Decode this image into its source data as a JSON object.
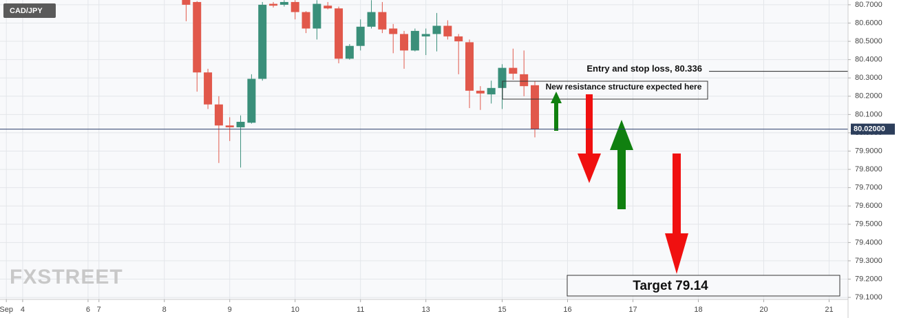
{
  "chart_data": {
    "type": "candlestick",
    "title": "CAD/JPY",
    "watermark": "FXSTREET",
    "up_color": "#3a8f7a",
    "down_color": "#e1584b",
    "grid": true,
    "x": [
      15,
      16,
      17,
      18,
      19,
      20,
      21,
      22,
      23,
      24,
      25,
      26,
      27,
      28,
      29,
      30,
      31,
      32,
      33,
      34,
      35,
      36,
      37,
      38,
      39,
      40,
      41,
      42,
      43,
      44,
      45,
      46,
      47
    ],
    "open": [
      80.74,
      80.715,
      80.33,
      80.155,
      80.04,
      80.03,
      80.055,
      80.295,
      80.705,
      80.7,
      80.715,
      80.66,
      80.57,
      80.695,
      80.68,
      80.405,
      80.475,
      80.58,
      80.66,
      80.57,
      80.54,
      80.45,
      80.527,
      80.54,
      80.585,
      80.527,
      80.495,
      80.23,
      80.21,
      80.245,
      80.355,
      80.32,
      80.26
    ],
    "high": [
      80.76,
      80.72,
      80.35,
      80.2,
      80.085,
      80.095,
      80.32,
      80.715,
      80.715,
      80.725,
      80.725,
      80.665,
      80.725,
      80.715,
      80.69,
      80.485,
      80.62,
      80.725,
      80.715,
      80.595,
      80.557,
      80.57,
      80.57,
      80.655,
      80.615,
      80.54,
      80.51,
      80.255,
      80.285,
      80.375,
      80.46,
      80.45,
      80.28
    ],
    "low": [
      80.61,
      80.225,
      80.13,
      79.835,
      79.955,
      79.81,
      80.05,
      80.285,
      80.685,
      80.69,
      80.62,
      80.545,
      80.51,
      80.675,
      80.38,
      80.4,
      80.45,
      80.57,
      80.545,
      80.435,
      80.35,
      80.445,
      80.425,
      80.445,
      80.51,
      80.32,
      80.135,
      80.125,
      80.16,
      80.13,
      80.29,
      80.2,
      79.975
    ],
    "close": [
      80.7,
      80.33,
      80.155,
      80.04,
      80.03,
      80.06,
      80.295,
      80.7,
      80.695,
      80.715,
      80.66,
      80.57,
      80.705,
      80.68,
      80.405,
      80.475,
      80.58,
      80.66,
      80.565,
      80.54,
      80.45,
      80.557,
      80.54,
      80.585,
      80.527,
      80.5,
      80.23,
      80.215,
      80.245,
      80.355,
      80.323,
      80.255,
      80.02
    ],
    "xlim": [
      -2.08,
      75.74
    ],
    "ylim": [
      79.089,
      80.726
    ],
    "xticks": [
      {
        "value": -1.5,
        "label": "Sep"
      },
      {
        "value": 0,
        "label": "4"
      },
      {
        "value": 6,
        "label": "6"
      },
      {
        "value": 7,
        "label": "7"
      },
      {
        "value": 13,
        "label": "8"
      },
      {
        "value": 19,
        "label": "9"
      },
      {
        "value": 25,
        "label": "10"
      },
      {
        "value": 31,
        "label": "11"
      },
      {
        "value": 37,
        "label": "13"
      },
      {
        "value": 44,
        "label": "15"
      },
      {
        "value": 50,
        "label": "16"
      },
      {
        "value": 56,
        "label": "17"
      },
      {
        "value": 62,
        "label": "18"
      },
      {
        "value": 68,
        "label": "20"
      },
      {
        "value": 74,
        "label": "21"
      }
    ],
    "yticks": [
      {
        "value": 80.7,
        "label": "80.7000"
      },
      {
        "value": 80.6,
        "label": "80.6000"
      },
      {
        "value": 80.5,
        "label": "80.5000"
      },
      {
        "value": 80.4,
        "label": "80.4000"
      },
      {
        "value": 80.3,
        "label": "80.3000"
      },
      {
        "value": 80.2,
        "label": "80.2000"
      },
      {
        "value": 80.1,
        "label": "80.1000"
      },
      {
        "value": 80.0,
        "label": "80.0000"
      },
      {
        "value": 79.9,
        "label": "79.9000"
      },
      {
        "value": 79.8,
        "label": "79.8000"
      },
      {
        "value": 79.7,
        "label": "79.7000"
      },
      {
        "value": 79.6,
        "label": "79.6000"
      },
      {
        "value": 79.5,
        "label": "79.5000"
      },
      {
        "value": 79.4,
        "label": "79.4000"
      },
      {
        "value": 79.3,
        "label": "79.3000"
      },
      {
        "value": 79.2,
        "label": "79.2000"
      },
      {
        "value": 79.1,
        "label": "79.1000"
      }
    ],
    "last_price": {
      "value": 80.02,
      "label": "80.02000"
    },
    "entry_line": {
      "value": 80.336,
      "label": "Entry and stop loss, 80.336"
    },
    "annotations": [
      "New resistance structure expected here",
      "Target 79.14"
    ]
  }
}
